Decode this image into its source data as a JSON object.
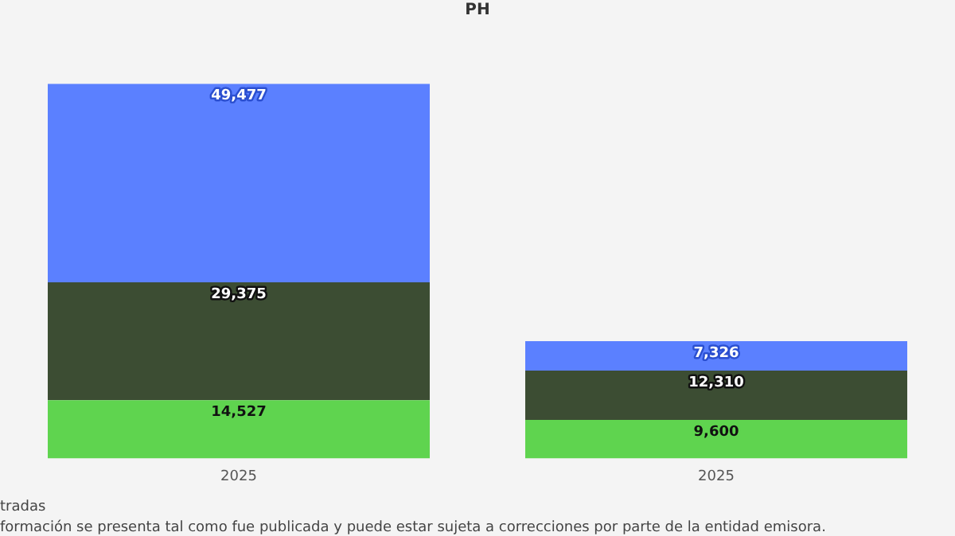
{
  "chart_data": {
    "type": "bar",
    "title": "PH",
    "categories": [
      "2025",
      "2025"
    ],
    "stacked": true,
    "legend": false,
    "grid": false,
    "series": [
      {
        "color": "#5fd44f",
        "values": [
          14527,
          9600
        ],
        "value_labels": [
          "14,527",
          "9,600"
        ]
      },
      {
        "color": "#3c4d33",
        "values": [
          29375,
          12310
        ],
        "value_labels": [
          "29,375",
          "12,310"
        ]
      },
      {
        "color": "#5b80ff",
        "values": [
          49477,
          7326
        ],
        "value_labels": [
          "49,477",
          "7,326"
        ]
      }
    ],
    "annotations": [
      "tradas",
      "formación se presenta tal como fue publicada y puede estar sujeta a correcciones por parte de la entidad emisora."
    ]
  }
}
